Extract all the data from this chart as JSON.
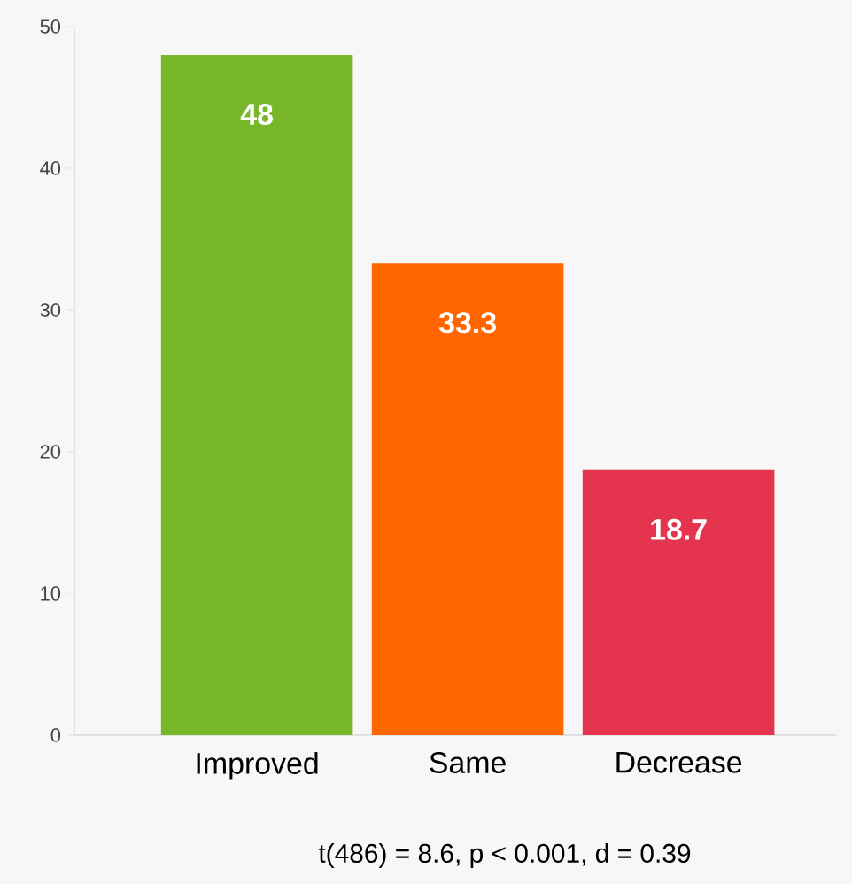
{
  "chart_data": {
    "type": "bar",
    "categories": [
      "Improved",
      "Same",
      "Decrease"
    ],
    "values": [
      48,
      33.3,
      18.7
    ],
    "colors": [
      "#79b72a",
      "#ff6600",
      "#e5344d"
    ],
    "ylim": [
      0,
      50
    ],
    "yticks": [
      0,
      10,
      20,
      30,
      40,
      50
    ],
    "grid": false,
    "data_labels": true,
    "annotations": [
      "t(486) = 8.6, p < 0.001, d = 0.39"
    ]
  }
}
